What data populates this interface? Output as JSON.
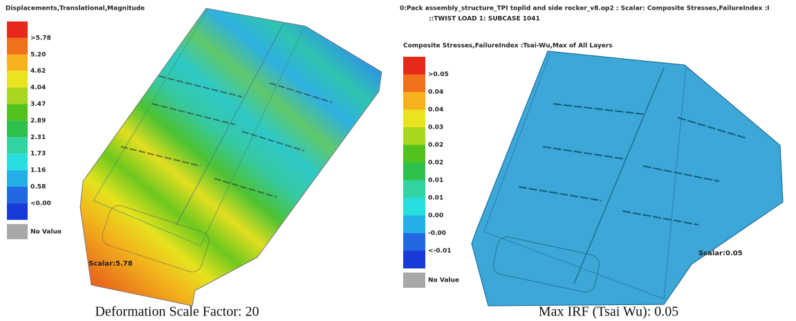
{
  "left": {
    "title": "Displacements,Translational,Magnitude",
    "legend": {
      "labels": [
        ">5.78",
        "5.20",
        "4.62",
        "4.04",
        "3.47",
        "2.89",
        "2.31",
        "1.73",
        "1.16",
        "0.58",
        "<0.00"
      ],
      "colors": [
        "#e52a1c",
        "#f0701c",
        "#f6b21c",
        "#e9e41e",
        "#a9d61e",
        "#52c21e",
        "#2fbf4c",
        "#31d3a0",
        "#26dede",
        "#22aee6",
        "#2268e2",
        "#1a3ad8"
      ],
      "no_value": "No Value"
    },
    "annotation": "Scalar:5.78",
    "caption": "Deformation Scale Factor: 20"
  },
  "right": {
    "header": [
      "0:Pack assembly_structure_TPI toplid and side rocker_v8.op2 : Scalar: Composite Stresses,FailureIndex :I",
      "::TWIST LOAD 1: SUBCASE 1041"
    ],
    "title": "Composite Stresses,FailureIndex :Tsai-Wu,Max of All Layers",
    "legend": {
      "labels": [
        ">0.05",
        "0.04",
        "0.04",
        "0.03",
        "0.02",
        "0.02",
        "0.01",
        "0.01",
        "0.00",
        "-0.00",
        "<-0.01"
      ],
      "colors": [
        "#e52a1c",
        "#f0701c",
        "#f6b21c",
        "#e9e41e",
        "#a9d61e",
        "#52c21e",
        "#2fbf4c",
        "#31d3a0",
        "#26dede",
        "#22aee6",
        "#2268e2",
        "#1a3ad8"
      ],
      "no_value": "No Value"
    },
    "annotation": "Scalar:0.05",
    "caption": "Max IRF (Tsai Wu): 0.05"
  }
}
